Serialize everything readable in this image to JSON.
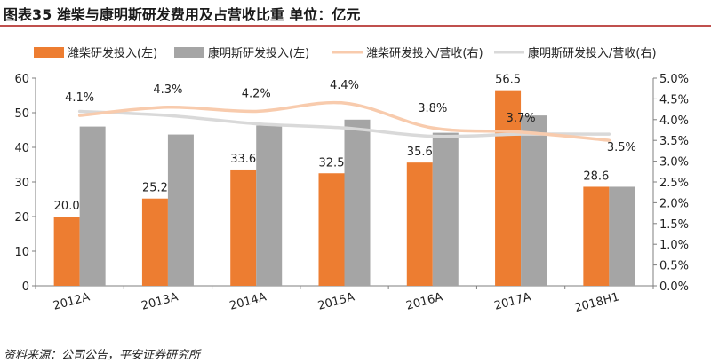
{
  "header": {
    "title": "图表35   潍柴与康明斯研发费用及占营收比重     单位：亿元"
  },
  "footer": {
    "source": "资料来源：公司公告，平安证券研究所"
  },
  "colors": {
    "weichai_bar": "#ed7d31",
    "cummins_bar": "#a5a5a5",
    "weichai_line": "#f8cbad",
    "cummins_line": "#d9d9d9",
    "axis": "#7f7f7f",
    "title_rule": "#c0504d"
  },
  "chart_data": {
    "type": "bar",
    "title": "潍柴与康明斯研发费用及占营收比重",
    "categories": [
      "2012A",
      "2013A",
      "2014A",
      "2015A",
      "2016A",
      "2017A",
      "2018H1"
    ],
    "series": [
      {
        "name": "潍柴研发投入(左)",
        "kind": "bar",
        "axis": "left",
        "color_key": "weichai_bar",
        "values": [
          20.0,
          25.2,
          33.6,
          32.5,
          35.6,
          56.5,
          28.6
        ],
        "labels": [
          "20.0",
          "25.2",
          "33.6",
          "32.5",
          "35.6",
          "56.5",
          "28.6"
        ]
      },
      {
        "name": "康明斯研发投入(左)",
        "kind": "bar",
        "axis": "left",
        "color_key": "cummins_bar",
        "values": [
          46.0,
          43.7,
          46.3,
          48.0,
          44.2,
          49.2,
          28.6
        ]
      },
      {
        "name": "潍柴研发投入/营收(右)",
        "kind": "line",
        "axis": "right",
        "color_key": "weichai_line",
        "values": [
          4.1,
          4.3,
          4.2,
          4.4,
          3.8,
          3.7,
          3.5
        ],
        "labels": [
          "4.1%",
          "4.3%",
          "4.2%",
          "4.4%",
          "3.8%",
          "3.7%",
          "3.5%"
        ]
      },
      {
        "name": "康明斯研发投入/营收(右)",
        "kind": "line",
        "axis": "right",
        "color_key": "cummins_line",
        "values": [
          4.2,
          4.1,
          3.9,
          3.8,
          3.6,
          3.65,
          3.65
        ]
      }
    ],
    "left_axis": {
      "min": 0,
      "max": 60,
      "step": 10,
      "tick_labels": [
        "0",
        "10",
        "20",
        "30",
        "40",
        "50",
        "60"
      ]
    },
    "right_axis": {
      "min": 0,
      "max": 5,
      "step": 0.5,
      "tick_labels": [
        "0.0%",
        "0.5%",
        "1.0%",
        "1.5%",
        "2.0%",
        "2.5%",
        "3.0%",
        "3.5%",
        "4.0%",
        "4.5%",
        "5.0%"
      ]
    },
    "legend_position": "top",
    "grid": false
  }
}
